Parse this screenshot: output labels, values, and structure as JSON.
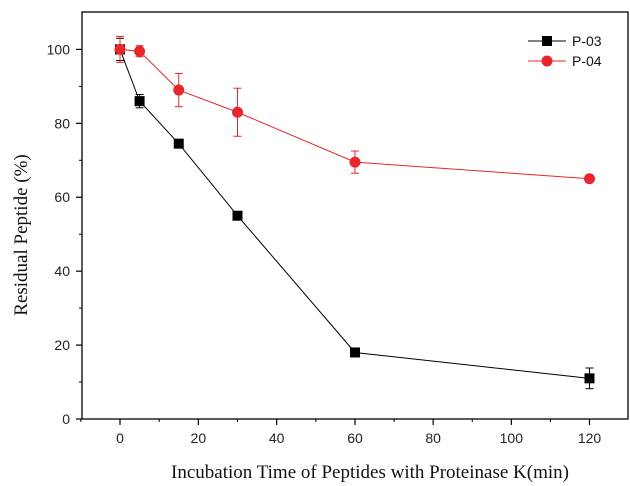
{
  "chart_data": {
    "type": "line",
    "xlabel": "Incubation Time of Peptides with Proteinase K(min)",
    "ylabel": "Residual Peptide (%)",
    "xlim": [
      -10,
      130
    ],
    "ylim": [
      0,
      110
    ],
    "xticks": [
      0,
      20,
      40,
      60,
      80,
      100,
      120
    ],
    "yticks": [
      0,
      20,
      40,
      60,
      80,
      100
    ],
    "x_scale": "piecewise: 0-60 uniform, 60-120 compressed to spacing of 20-unit ticks",
    "grid": false,
    "legend_position": "top-right",
    "series": [
      {
        "name": "P-03",
        "color": "#000000",
        "marker": "square",
        "x": [
          0,
          5,
          15,
          30,
          60,
          120
        ],
        "y": [
          100,
          86,
          74.5,
          55,
          18,
          11
        ],
        "yerr": [
          3,
          1.8,
          0.8,
          0.8,
          0.8,
          2.8
        ]
      },
      {
        "name": "P-04",
        "color": "#e8262a",
        "marker": "circle",
        "x": [
          0,
          5,
          15,
          30,
          60,
          120
        ],
        "y": [
          100,
          99.5,
          89,
          83,
          69.5,
          65
        ],
        "yerr": [
          3.5,
          1.5,
          4.5,
          6.5,
          3,
          0.6
        ]
      }
    ]
  }
}
